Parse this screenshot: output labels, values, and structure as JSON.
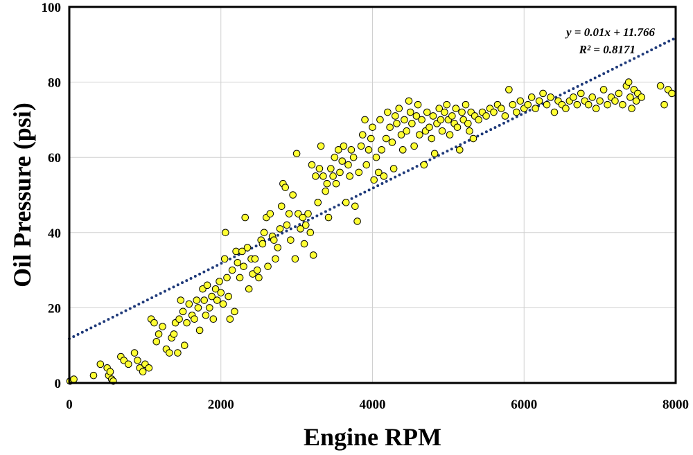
{
  "chart_data": {
    "type": "scatter",
    "title": "",
    "xlabel": "Engine RPM",
    "ylabel": "Oil Pressure (psi)",
    "xlim": [
      0,
      8000
    ],
    "ylim": [
      0,
      100
    ],
    "xticks": [
      0,
      2000,
      4000,
      6000,
      8000
    ],
    "yticks": [
      0,
      20,
      40,
      60,
      80,
      100
    ],
    "grid": true,
    "legend": "none",
    "colors": {
      "marker_fill": "#ffff33",
      "marker_edge": "#000000",
      "trendline": "#1f3a7a",
      "grid": "#d0d0d0",
      "axis": "#000000"
    },
    "trendline": {
      "type": "linear",
      "slope": 0.01,
      "intercept": 11.766,
      "style": "dotted",
      "equation_label": "y = 0.01x + 11.766",
      "r2_label": "R² = 0.8171"
    },
    "series": [
      {
        "marker": "circle",
        "points": [
          [
            10,
            0.5
          ],
          [
            60,
            1
          ],
          [
            320,
            2
          ],
          [
            410,
            5
          ],
          [
            500,
            4
          ],
          [
            520,
            2
          ],
          [
            540,
            3
          ],
          [
            560,
            1
          ],
          [
            580,
            0.5
          ],
          [
            680,
            7
          ],
          [
            720,
            6
          ],
          [
            780,
            5
          ],
          [
            860,
            8
          ],
          [
            900,
            6
          ],
          [
            930,
            4
          ],
          [
            970,
            3
          ],
          [
            1000,
            5
          ],
          [
            1050,
            4
          ],
          [
            1080,
            17
          ],
          [
            1120,
            16
          ],
          [
            1150,
            11
          ],
          [
            1180,
            13
          ],
          [
            1230,
            15
          ],
          [
            1280,
            9
          ],
          [
            1320,
            8
          ],
          [
            1350,
            12
          ],
          [
            1380,
            13
          ],
          [
            1400,
            16
          ],
          [
            1430,
            8
          ],
          [
            1450,
            17
          ],
          [
            1470,
            22
          ],
          [
            1500,
            19
          ],
          [
            1520,
            10
          ],
          [
            1550,
            16
          ],
          [
            1580,
            21
          ],
          [
            1620,
            18
          ],
          [
            1650,
            17
          ],
          [
            1680,
            22
          ],
          [
            1700,
            20
          ],
          [
            1720,
            14
          ],
          [
            1760,
            25
          ],
          [
            1780,
            22
          ],
          [
            1800,
            18
          ],
          [
            1820,
            26
          ],
          [
            1850,
            20
          ],
          [
            1880,
            23
          ],
          [
            1900,
            17
          ],
          [
            1930,
            25
          ],
          [
            1950,
            22
          ],
          [
            1980,
            27
          ],
          [
            2000,
            24
          ],
          [
            2030,
            21
          ],
          [
            2050,
            33
          ],
          [
            2060,
            40
          ],
          [
            2080,
            28
          ],
          [
            2100,
            23
          ],
          [
            2120,
            17
          ],
          [
            2150,
            30
          ],
          [
            2180,
            19
          ],
          [
            2200,
            35
          ],
          [
            2220,
            32
          ],
          [
            2250,
            28
          ],
          [
            2280,
            35
          ],
          [
            2300,
            31
          ],
          [
            2320,
            44
          ],
          [
            2350,
            36
          ],
          [
            2370,
            25
          ],
          [
            2400,
            33
          ],
          [
            2420,
            29
          ],
          [
            2450,
            33
          ],
          [
            2480,
            30
          ],
          [
            2500,
            28
          ],
          [
            2530,
            38
          ],
          [
            2550,
            37
          ],
          [
            2570,
            40
          ],
          [
            2600,
            44
          ],
          [
            2620,
            31
          ],
          [
            2650,
            45
          ],
          [
            2680,
            39
          ],
          [
            2700,
            38
          ],
          [
            2720,
            33
          ],
          [
            2750,
            36
          ],
          [
            2780,
            41
          ],
          [
            2800,
            47
          ],
          [
            2820,
            53
          ],
          [
            2850,
            52
          ],
          [
            2870,
            42
          ],
          [
            2900,
            45
          ],
          [
            2920,
            38
          ],
          [
            2950,
            50
          ],
          [
            2980,
            33
          ],
          [
            3000,
            61
          ],
          [
            3020,
            45
          ],
          [
            3050,
            41
          ],
          [
            3080,
            44
          ],
          [
            3100,
            37
          ],
          [
            3120,
            42
          ],
          [
            3150,
            45
          ],
          [
            3180,
            40
          ],
          [
            3200,
            58
          ],
          [
            3220,
            34
          ],
          [
            3250,
            55
          ],
          [
            3280,
            48
          ],
          [
            3300,
            57
          ],
          [
            3320,
            63
          ],
          [
            3350,
            55
          ],
          [
            3380,
            51
          ],
          [
            3400,
            53
          ],
          [
            3420,
            44
          ],
          [
            3450,
            57
          ],
          [
            3480,
            55
          ],
          [
            3500,
            60
          ],
          [
            3520,
            53
          ],
          [
            3550,
            62
          ],
          [
            3570,
            56
          ],
          [
            3600,
            59
          ],
          [
            3620,
            63
          ],
          [
            3650,
            48
          ],
          [
            3680,
            58
          ],
          [
            3700,
            55
          ],
          [
            3720,
            62
          ],
          [
            3750,
            60
          ],
          [
            3770,
            47
          ],
          [
            3800,
            43
          ],
          [
            3820,
            56
          ],
          [
            3850,
            63
          ],
          [
            3870,
            66
          ],
          [
            3900,
            70
          ],
          [
            3920,
            58
          ],
          [
            3950,
            62
          ],
          [
            3980,
            65
          ],
          [
            4000,
            68
          ],
          [
            4020,
            54
          ],
          [
            4050,
            60
          ],
          [
            4080,
            56
          ],
          [
            4100,
            70
          ],
          [
            4120,
            62
          ],
          [
            4150,
            55
          ],
          [
            4180,
            65
          ],
          [
            4200,
            72
          ],
          [
            4230,
            68
          ],
          [
            4260,
            64
          ],
          [
            4280,
            57
          ],
          [
            4300,
            71
          ],
          [
            4320,
            69
          ],
          [
            4350,
            73
          ],
          [
            4380,
            66
          ],
          [
            4400,
            62
          ],
          [
            4420,
            70
          ],
          [
            4450,
            67
          ],
          [
            4480,
            75
          ],
          [
            4500,
            72
          ],
          [
            4520,
            69
          ],
          [
            4550,
            63
          ],
          [
            4580,
            71
          ],
          [
            4600,
            74
          ],
          [
            4620,
            66
          ],
          [
            4650,
            70
          ],
          [
            4680,
            58
          ],
          [
            4700,
            67
          ],
          [
            4720,
            72
          ],
          [
            4750,
            68
          ],
          [
            4780,
            65
          ],
          [
            4800,
            71
          ],
          [
            4820,
            61
          ],
          [
            4850,
            69
          ],
          [
            4880,
            73
          ],
          [
            4900,
            70
          ],
          [
            4920,
            67
          ],
          [
            4950,
            72
          ],
          [
            4980,
            74
          ],
          [
            5000,
            70
          ],
          [
            5020,
            66
          ],
          [
            5050,
            71
          ],
          [
            5080,
            69
          ],
          [
            5100,
            73
          ],
          [
            5120,
            68
          ],
          [
            5150,
            62
          ],
          [
            5180,
            72
          ],
          [
            5200,
            70
          ],
          [
            5230,
            74
          ],
          [
            5260,
            69
          ],
          [
            5280,
            67
          ],
          [
            5300,
            72
          ],
          [
            5330,
            65
          ],
          [
            5350,
            71
          ],
          [
            5400,
            70
          ],
          [
            5450,
            72
          ],
          [
            5500,
            71
          ],
          [
            5550,
            73
          ],
          [
            5600,
            72
          ],
          [
            5650,
            74
          ],
          [
            5700,
            73
          ],
          [
            5750,
            71
          ],
          [
            5800,
            78
          ],
          [
            5850,
            74
          ],
          [
            5900,
            72
          ],
          [
            5950,
            75
          ],
          [
            6000,
            73
          ],
          [
            6050,
            74
          ],
          [
            6100,
            76
          ],
          [
            6150,
            73
          ],
          [
            6200,
            75
          ],
          [
            6250,
            77
          ],
          [
            6300,
            74
          ],
          [
            6350,
            76
          ],
          [
            6400,
            72
          ],
          [
            6450,
            75
          ],
          [
            6500,
            74
          ],
          [
            6550,
            73
          ],
          [
            6600,
            75
          ],
          [
            6650,
            76
          ],
          [
            6700,
            74
          ],
          [
            6750,
            77
          ],
          [
            6800,
            75
          ],
          [
            6850,
            74
          ],
          [
            6900,
            76
          ],
          [
            6950,
            73
          ],
          [
            7000,
            75
          ],
          [
            7050,
            78
          ],
          [
            7100,
            74
          ],
          [
            7150,
            76
          ],
          [
            7200,
            75
          ],
          [
            7250,
            77
          ],
          [
            7300,
            74
          ],
          [
            7350,
            79
          ],
          [
            7380,
            80
          ],
          [
            7400,
            76
          ],
          [
            7420,
            73
          ],
          [
            7450,
            78
          ],
          [
            7480,
            75
          ],
          [
            7500,
            77
          ],
          [
            7550,
            76
          ],
          [
            7800,
            79
          ],
          [
            7850,
            74
          ],
          [
            7900,
            78
          ],
          [
            7950,
            77
          ]
        ]
      }
    ]
  }
}
